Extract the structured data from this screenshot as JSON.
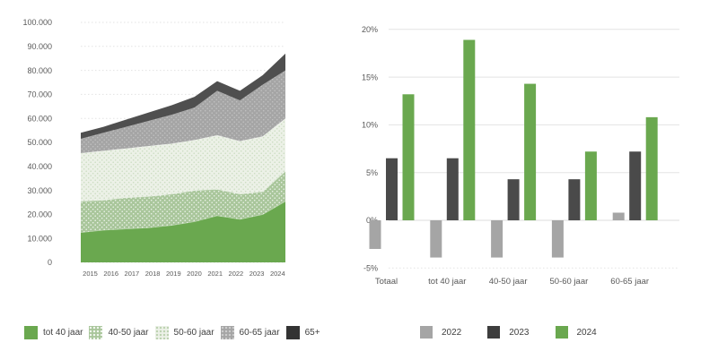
{
  "chart_data": [
    {
      "type": "area",
      "stacked": true,
      "title": "",
      "categories": [
        "2015",
        "2016",
        "2017",
        "2018",
        "2019",
        "2020",
        "2021",
        "2022",
        "2023",
        "2024"
      ],
      "series": [
        {
          "name": "tot 40 jaar",
          "color": "#6aa84f",
          "pattern": null,
          "values": [
            12500,
            13500,
            14000,
            14500,
            15500,
            17000,
            19500,
            18000,
            20000,
            25500
          ]
        },
        {
          "name": "40-50 jaar",
          "color": "#a9c69b",
          "pattern": {
            "dot": "#ffffff",
            "opacity": 0.75
          },
          "values": [
            13000,
            12500,
            13000,
            13000,
            13000,
            13000,
            11000,
            10500,
            9500,
            12500
          ]
        },
        {
          "name": "50-60 jaar",
          "color": "#ecf1e7",
          "pattern": {
            "dot": "#b2cba3",
            "opacity": 0.55
          },
          "values": [
            20000,
            20500,
            20500,
            21000,
            21000,
            21000,
            22500,
            22000,
            23000,
            22000
          ]
        },
        {
          "name": "60-65 jaar",
          "color": "#a5a5a5",
          "pattern": {
            "dot": "#ffffff",
            "opacity": 0.3
          },
          "values": [
            6000,
            7500,
            9000,
            10500,
            12000,
            13500,
            18500,
            17000,
            21500,
            20000
          ]
        },
        {
          "name": "65+",
          "color": "#4f4f4f",
          "pattern": null,
          "values": [
            2500,
            2500,
            3000,
            3500,
            4000,
            4500,
            4000,
            4000,
            4000,
            7000
          ]
        }
      ],
      "ylim": [
        0,
        100000
      ],
      "grid": true,
      "yticks": [
        [
          0,
          "0"
        ],
        [
          10000,
          "10.000"
        ],
        [
          20000,
          "20.000"
        ],
        [
          30000,
          "30.000"
        ],
        [
          40000,
          "40.000"
        ],
        [
          50000,
          "50.000"
        ],
        [
          60000,
          "60.000"
        ],
        [
          70000,
          "70.000"
        ],
        [
          80000,
          "80.000"
        ],
        [
          90000,
          "90.000"
        ],
        [
          100000,
          "100.000"
        ]
      ]
    },
    {
      "type": "bar",
      "title": "",
      "categories": [
        "Totaal",
        "tot 40 jaar",
        "40-50 jaar",
        "50-60 jaar",
        "60-65 jaar"
      ],
      "series": [
        {
          "name": "2022",
          "color": "#a5a5a5",
          "values": [
            -3.0,
            -3.9,
            -3.9,
            -3.9,
            0.8
          ]
        },
        {
          "name": "2023",
          "color": "#4a4a4a",
          "values": [
            6.5,
            6.5,
            4.3,
            4.3,
            7.2
          ]
        },
        {
          "name": "2024",
          "color": "#6aa84f",
          "values": [
            13.2,
            18.9,
            14.3,
            7.2,
            10.8
          ]
        }
      ],
      "ylim": [
        -5,
        20
      ],
      "grid": true,
      "yticks": [
        [
          -5,
          "-5%"
        ],
        [
          0,
          "0%"
        ],
        [
          5,
          "5%"
        ],
        [
          10,
          "10%"
        ],
        [
          15,
          "15%"
        ],
        [
          20,
          "20%"
        ]
      ]
    }
  ],
  "legend_left": {
    "items": [
      {
        "label": "tot 40 jaar",
        "color": "#6aa84f",
        "pattern": "solid"
      },
      {
        "label": "40-50 jaar",
        "color": "#a9c69b",
        "pattern": "dots-white"
      },
      {
        "label": "50-60 jaar",
        "color": "#ecf1e7",
        "pattern": "dots-green"
      },
      {
        "label": "60-65 jaar",
        "color": "#a5a5a5",
        "pattern": "dots-faint"
      },
      {
        "label": "65+",
        "color": "#333333",
        "pattern": "solid"
      }
    ]
  },
  "legend_right": {
    "items": [
      {
        "label": "2022",
        "color": "#a5a5a5",
        "pattern": "solid"
      },
      {
        "label": "2023",
        "color": "#3d3d3d",
        "pattern": "solid"
      },
      {
        "label": "2024",
        "color": "#6aa84f",
        "pattern": "solid"
      }
    ]
  },
  "colors": {
    "axis_text": "#595959",
    "grid_line": "#e3e3e3"
  }
}
